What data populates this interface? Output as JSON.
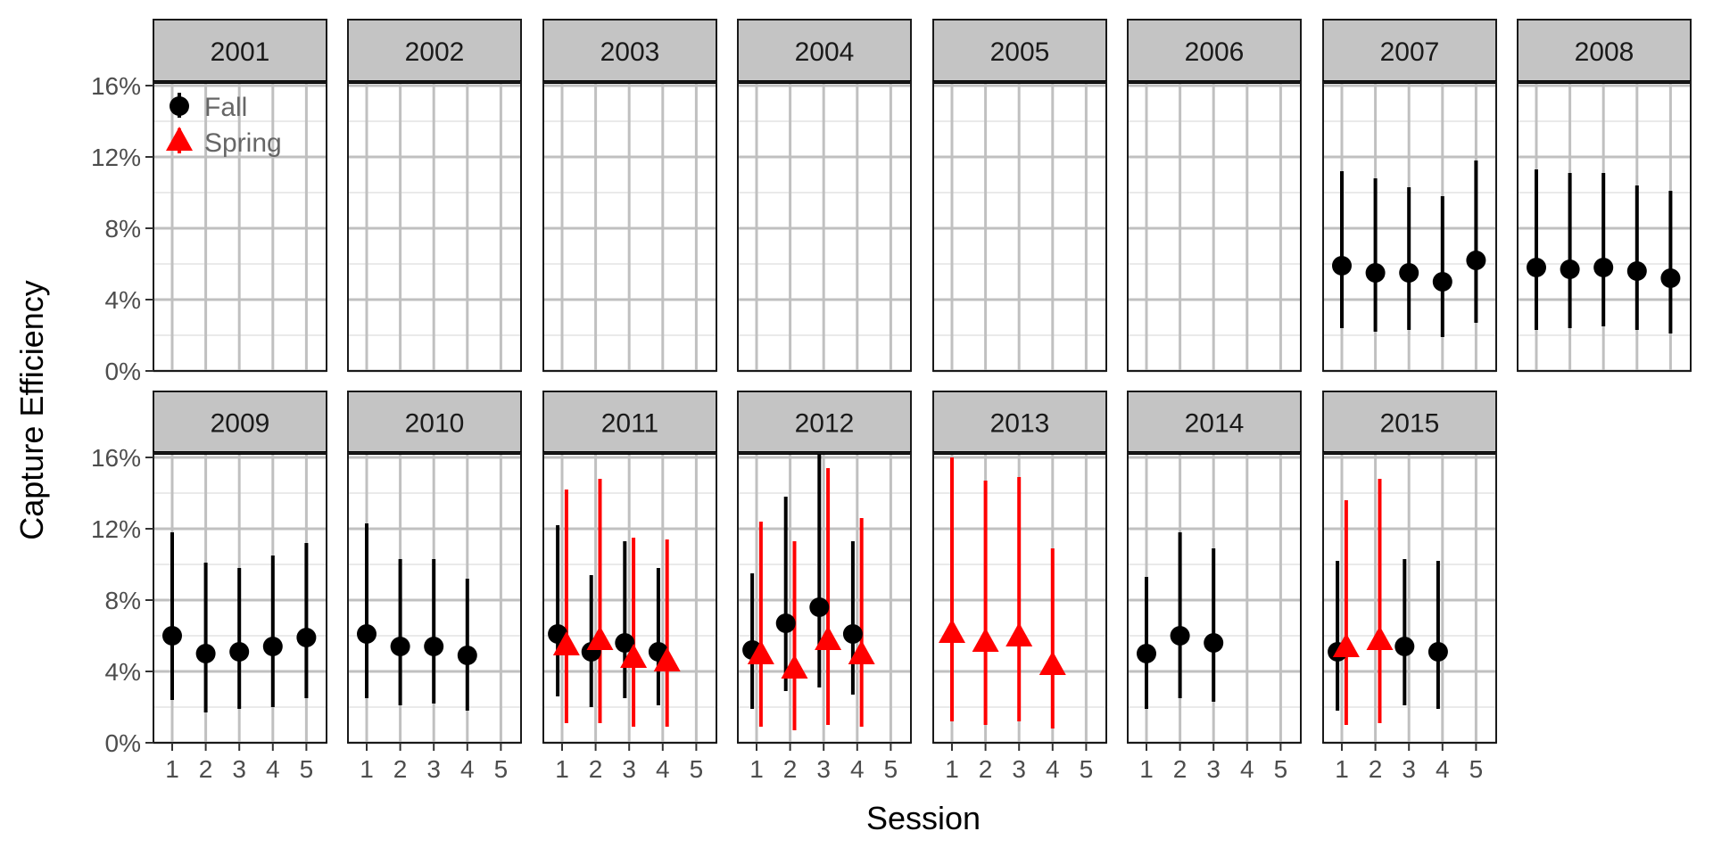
{
  "chart_data": {
    "type": "scatter",
    "facet_type": "point-range facets",
    "xlabel": "Session",
    "ylabel": "Capture Efficiency",
    "x_ticks": [
      "1",
      "2",
      "3",
      "4",
      "5"
    ],
    "y_ticks": [
      "0%",
      "4%",
      "8%",
      "12%",
      "16%"
    ],
    "ylim": [
      0,
      16
    ],
    "xlim": [
      0.5,
      5.5
    ],
    "grid": true,
    "legend_position": "top-left (inside first panel)",
    "legend": [
      {
        "label": "Fall",
        "shape": "circle",
        "color": "#000000"
      },
      {
        "label": "Spring",
        "shape": "triangle",
        "color": "#ff0000"
      }
    ],
    "panels": [
      {
        "year": "2001",
        "points": []
      },
      {
        "year": "2002",
        "points": []
      },
      {
        "year": "2003",
        "points": []
      },
      {
        "year": "2004",
        "points": []
      },
      {
        "year": "2005",
        "points": []
      },
      {
        "year": "2006",
        "points": []
      },
      {
        "year": "2007",
        "points": [
          {
            "season": "Fall",
            "session": 1,
            "y": 5.9,
            "lo": 2.4,
            "hi": 11.2
          },
          {
            "season": "Fall",
            "session": 2,
            "y": 5.5,
            "lo": 2.2,
            "hi": 10.8
          },
          {
            "season": "Fall",
            "session": 3,
            "y": 5.5,
            "lo": 2.3,
            "hi": 10.3
          },
          {
            "season": "Fall",
            "session": 4,
            "y": 5.0,
            "lo": 1.9,
            "hi": 9.8
          },
          {
            "season": "Fall",
            "session": 5,
            "y": 6.2,
            "lo": 2.7,
            "hi": 11.8
          }
        ]
      },
      {
        "year": "2008",
        "points": [
          {
            "season": "Fall",
            "session": 1,
            "y": 5.8,
            "lo": 2.3,
            "hi": 11.3
          },
          {
            "season": "Fall",
            "session": 2,
            "y": 5.7,
            "lo": 2.4,
            "hi": 11.1
          },
          {
            "season": "Fall",
            "session": 3,
            "y": 5.8,
            "lo": 2.5,
            "hi": 11.1
          },
          {
            "season": "Fall",
            "session": 4,
            "y": 5.6,
            "lo": 2.3,
            "hi": 10.4
          },
          {
            "season": "Fall",
            "session": 5,
            "y": 5.2,
            "lo": 2.1,
            "hi": 10.1
          }
        ]
      },
      {
        "year": "2009",
        "points": [
          {
            "season": "Fall",
            "session": 1,
            "y": 6.0,
            "lo": 2.4,
            "hi": 11.8
          },
          {
            "season": "Fall",
            "session": 2,
            "y": 5.0,
            "lo": 1.7,
            "hi": 10.1
          },
          {
            "season": "Fall",
            "session": 3,
            "y": 5.1,
            "lo": 1.9,
            "hi": 9.8
          },
          {
            "season": "Fall",
            "session": 4,
            "y": 5.4,
            "lo": 2.0,
            "hi": 10.5
          },
          {
            "season": "Fall",
            "session": 5,
            "y": 5.9,
            "lo": 2.5,
            "hi": 11.2
          }
        ]
      },
      {
        "year": "2010",
        "points": [
          {
            "season": "Fall",
            "session": 1,
            "y": 6.1,
            "lo": 2.5,
            "hi": 12.3
          },
          {
            "season": "Fall",
            "session": 2,
            "y": 5.4,
            "lo": 2.1,
            "hi": 10.3
          },
          {
            "season": "Fall",
            "session": 3,
            "y": 5.4,
            "lo": 2.2,
            "hi": 10.3
          },
          {
            "season": "Fall",
            "session": 4,
            "y": 4.9,
            "lo": 1.8,
            "hi": 9.2
          }
        ]
      },
      {
        "year": "2011",
        "points": [
          {
            "season": "Fall",
            "session": 1,
            "y": 6.1,
            "lo": 2.6,
            "hi": 12.2
          },
          {
            "season": "Fall",
            "session": 2,
            "y": 5.1,
            "lo": 2.0,
            "hi": 9.4
          },
          {
            "season": "Fall",
            "session": 3,
            "y": 5.6,
            "lo": 2.5,
            "hi": 11.3
          },
          {
            "season": "Fall",
            "session": 4,
            "y": 5.1,
            "lo": 2.1,
            "hi": 9.8
          },
          {
            "season": "Spring",
            "session": 1,
            "y": 5.5,
            "lo": 1.1,
            "hi": 14.2
          },
          {
            "season": "Spring",
            "session": 2,
            "y": 5.8,
            "lo": 1.1,
            "hi": 14.8
          },
          {
            "season": "Spring",
            "session": 3,
            "y": 4.8,
            "lo": 0.9,
            "hi": 11.5
          },
          {
            "season": "Spring",
            "session": 4,
            "y": 4.6,
            "lo": 0.9,
            "hi": 11.4
          }
        ]
      },
      {
        "year": "2012",
        "points": [
          {
            "season": "Fall",
            "session": 1,
            "y": 5.2,
            "lo": 1.9,
            "hi": 9.5
          },
          {
            "season": "Fall",
            "session": 2,
            "y": 6.7,
            "lo": 2.9,
            "hi": 13.8
          },
          {
            "season": "Fall",
            "session": 3,
            "y": 7.6,
            "lo": 3.1,
            "hi": 16.2
          },
          {
            "season": "Fall",
            "session": 4,
            "y": 6.1,
            "lo": 2.7,
            "hi": 11.3
          },
          {
            "season": "Spring",
            "session": 1,
            "y": 5.0,
            "lo": 0.9,
            "hi": 12.4
          },
          {
            "season": "Spring",
            "session": 2,
            "y": 4.2,
            "lo": 0.7,
            "hi": 11.3
          },
          {
            "season": "Spring",
            "session": 3,
            "y": 5.8,
            "lo": 1.0,
            "hi": 15.4
          },
          {
            "season": "Spring",
            "session": 4,
            "y": 5.0,
            "lo": 0.9,
            "hi": 12.6
          }
        ]
      },
      {
        "year": "2013",
        "points": [
          {
            "season": "Spring",
            "session": 1,
            "y": 6.2,
            "lo": 1.2,
            "hi": 16.0
          },
          {
            "season": "Spring",
            "session": 2,
            "y": 5.7,
            "lo": 1.0,
            "hi": 14.7
          },
          {
            "season": "Spring",
            "session": 3,
            "y": 6.0,
            "lo": 1.2,
            "hi": 14.9
          },
          {
            "season": "Spring",
            "session": 4,
            "y": 4.4,
            "lo": 0.8,
            "hi": 10.9
          }
        ]
      },
      {
        "year": "2014",
        "points": [
          {
            "season": "Fall",
            "session": 1,
            "y": 5.0,
            "lo": 1.9,
            "hi": 9.3
          },
          {
            "season": "Fall",
            "session": 2,
            "y": 6.0,
            "lo": 2.5,
            "hi": 11.8
          },
          {
            "season": "Fall",
            "session": 3,
            "y": 5.6,
            "lo": 2.3,
            "hi": 10.9
          }
        ]
      },
      {
        "year": "2015",
        "points": [
          {
            "season": "Fall",
            "session": 1,
            "y": 5.1,
            "lo": 1.8,
            "hi": 10.2
          },
          {
            "season": "Fall",
            "session": 3,
            "y": 5.4,
            "lo": 2.1,
            "hi": 10.3
          },
          {
            "season": "Fall",
            "session": 4,
            "y": 5.1,
            "lo": 1.9,
            "hi": 10.2
          },
          {
            "season": "Spring",
            "session": 1,
            "y": 5.4,
            "lo": 1.0,
            "hi": 13.6
          },
          {
            "season": "Spring",
            "session": 2,
            "y": 5.8,
            "lo": 1.1,
            "hi": 14.8
          }
        ]
      }
    ],
    "colors": {
      "fall": "#000000",
      "spring": "#ff0000",
      "strip": "#c4c4c4",
      "grid_major": "#c0c0c0",
      "grid_minor": "#e3e3e3"
    }
  }
}
